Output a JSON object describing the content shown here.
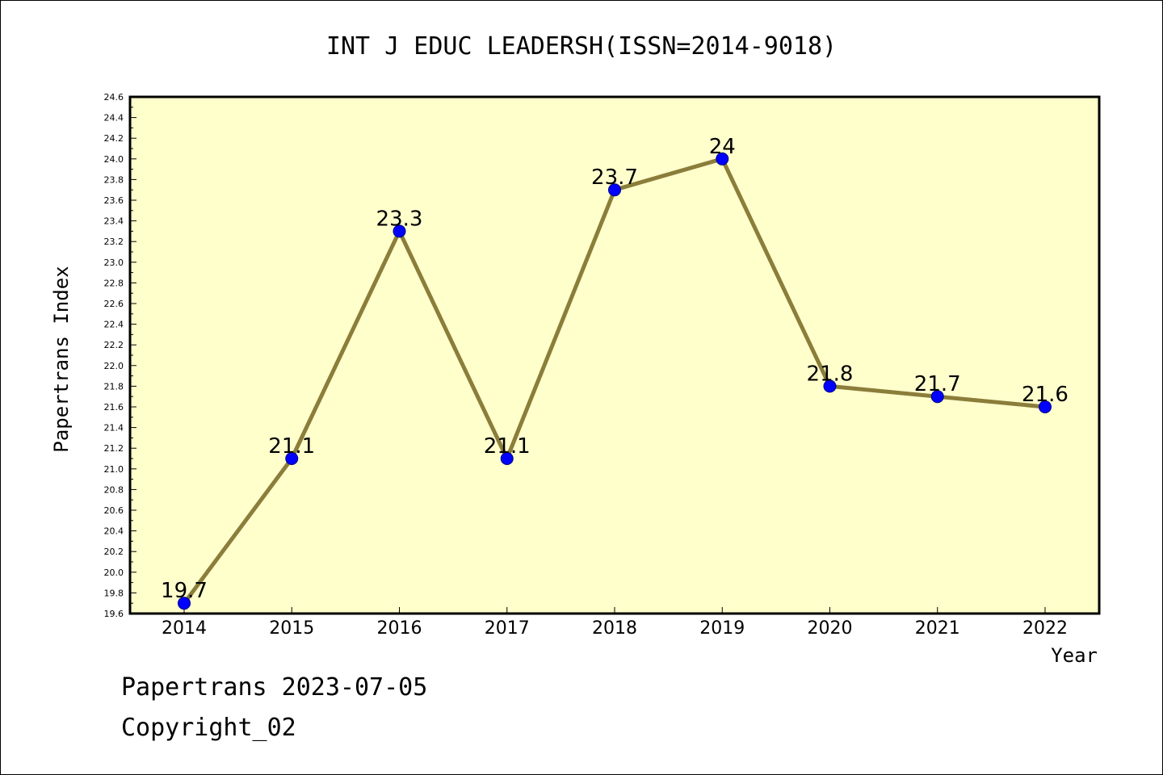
{
  "chart_data": {
    "type": "line",
    "title": "INT J EDUC LEADERSH(ISSN=2014-9018)",
    "xlabel": "Year",
    "ylabel": "Papertrans Index",
    "x": [
      "2014",
      "2015",
      "2016",
      "2017",
      "2018",
      "2019",
      "2020",
      "2021",
      "2022"
    ],
    "values": [
      19.7,
      21.1,
      23.3,
      21.1,
      23.7,
      24.0,
      21.8,
      21.7,
      21.6
    ],
    "data_labels": [
      "19.7",
      "21.1",
      "23.3",
      "21.1",
      "23.7",
      "24",
      "21.8",
      "21.7",
      "21.6"
    ],
    "ylim": [
      19.6,
      24.6
    ],
    "ytick_step": 0.2,
    "grid": false,
    "legend": false,
    "colors": {
      "plot_background": "#ffffcc",
      "line": "#8b7d3a",
      "marker": "#0000ff",
      "marker_edge": "#000080"
    }
  },
  "footer": {
    "date_text": "Papertrans 2023-07-05",
    "copyright_text": "Copyright_02"
  }
}
